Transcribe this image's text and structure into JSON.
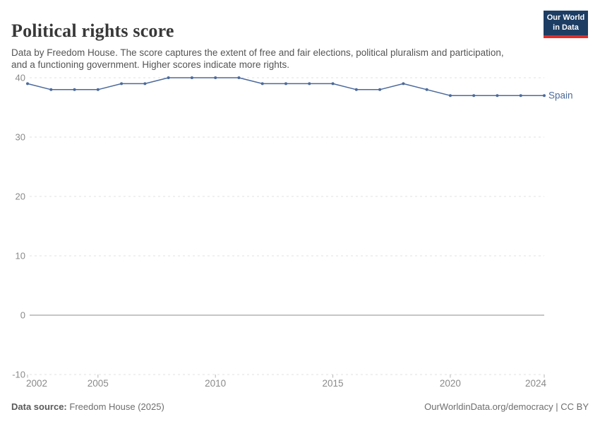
{
  "header": {
    "title": "Political rights score",
    "subtitle": "Data by Freedom House. The score captures the extent of free and fair elections, political pluralism and participation, and a functioning government. Higher scores indicate more rights."
  },
  "logo": {
    "line1": "Our World",
    "line2": "in Data"
  },
  "chart_data": {
    "type": "line",
    "title": "Political rights score",
    "x": [
      2002,
      2003,
      2004,
      2005,
      2006,
      2007,
      2008,
      2009,
      2010,
      2011,
      2012,
      2013,
      2014,
      2015,
      2016,
      2017,
      2018,
      2019,
      2020,
      2021,
      2022,
      2023,
      2024
    ],
    "series": [
      {
        "name": "Spain",
        "color": "#4c6a9c",
        "values": [
          39,
          38,
          38,
          38,
          39,
          39,
          40,
          40,
          40,
          40,
          39,
          39,
          39,
          39,
          38,
          38,
          39,
          38,
          37,
          37,
          37,
          37,
          37
        ]
      }
    ],
    "x_ticks": [
      2002,
      2005,
      2010,
      2015,
      2020,
      2024
    ],
    "y_ticks": [
      -10,
      0,
      10,
      20,
      30,
      40
    ],
    "xlim": [
      2002,
      2024
    ],
    "ylim": [
      -10,
      40
    ],
    "grid": "horizontal-dashed",
    "zero_line": true,
    "legend_position": "end-of-line"
  },
  "colors": {
    "line": "#4c6a9c",
    "grid": "#e2e2e2",
    "zero_line": "#a3a3a3",
    "tick_mark": "#b5b5b5",
    "axis_text": "#8a8a8a",
    "logo_bg": "#1d3d63",
    "logo_bar": "#e12d28"
  },
  "footer": {
    "source_label": "Data source:",
    "source_value": "Freedom House (2025)",
    "credit": "OurWorldinData.org/democracy | CC BY"
  }
}
